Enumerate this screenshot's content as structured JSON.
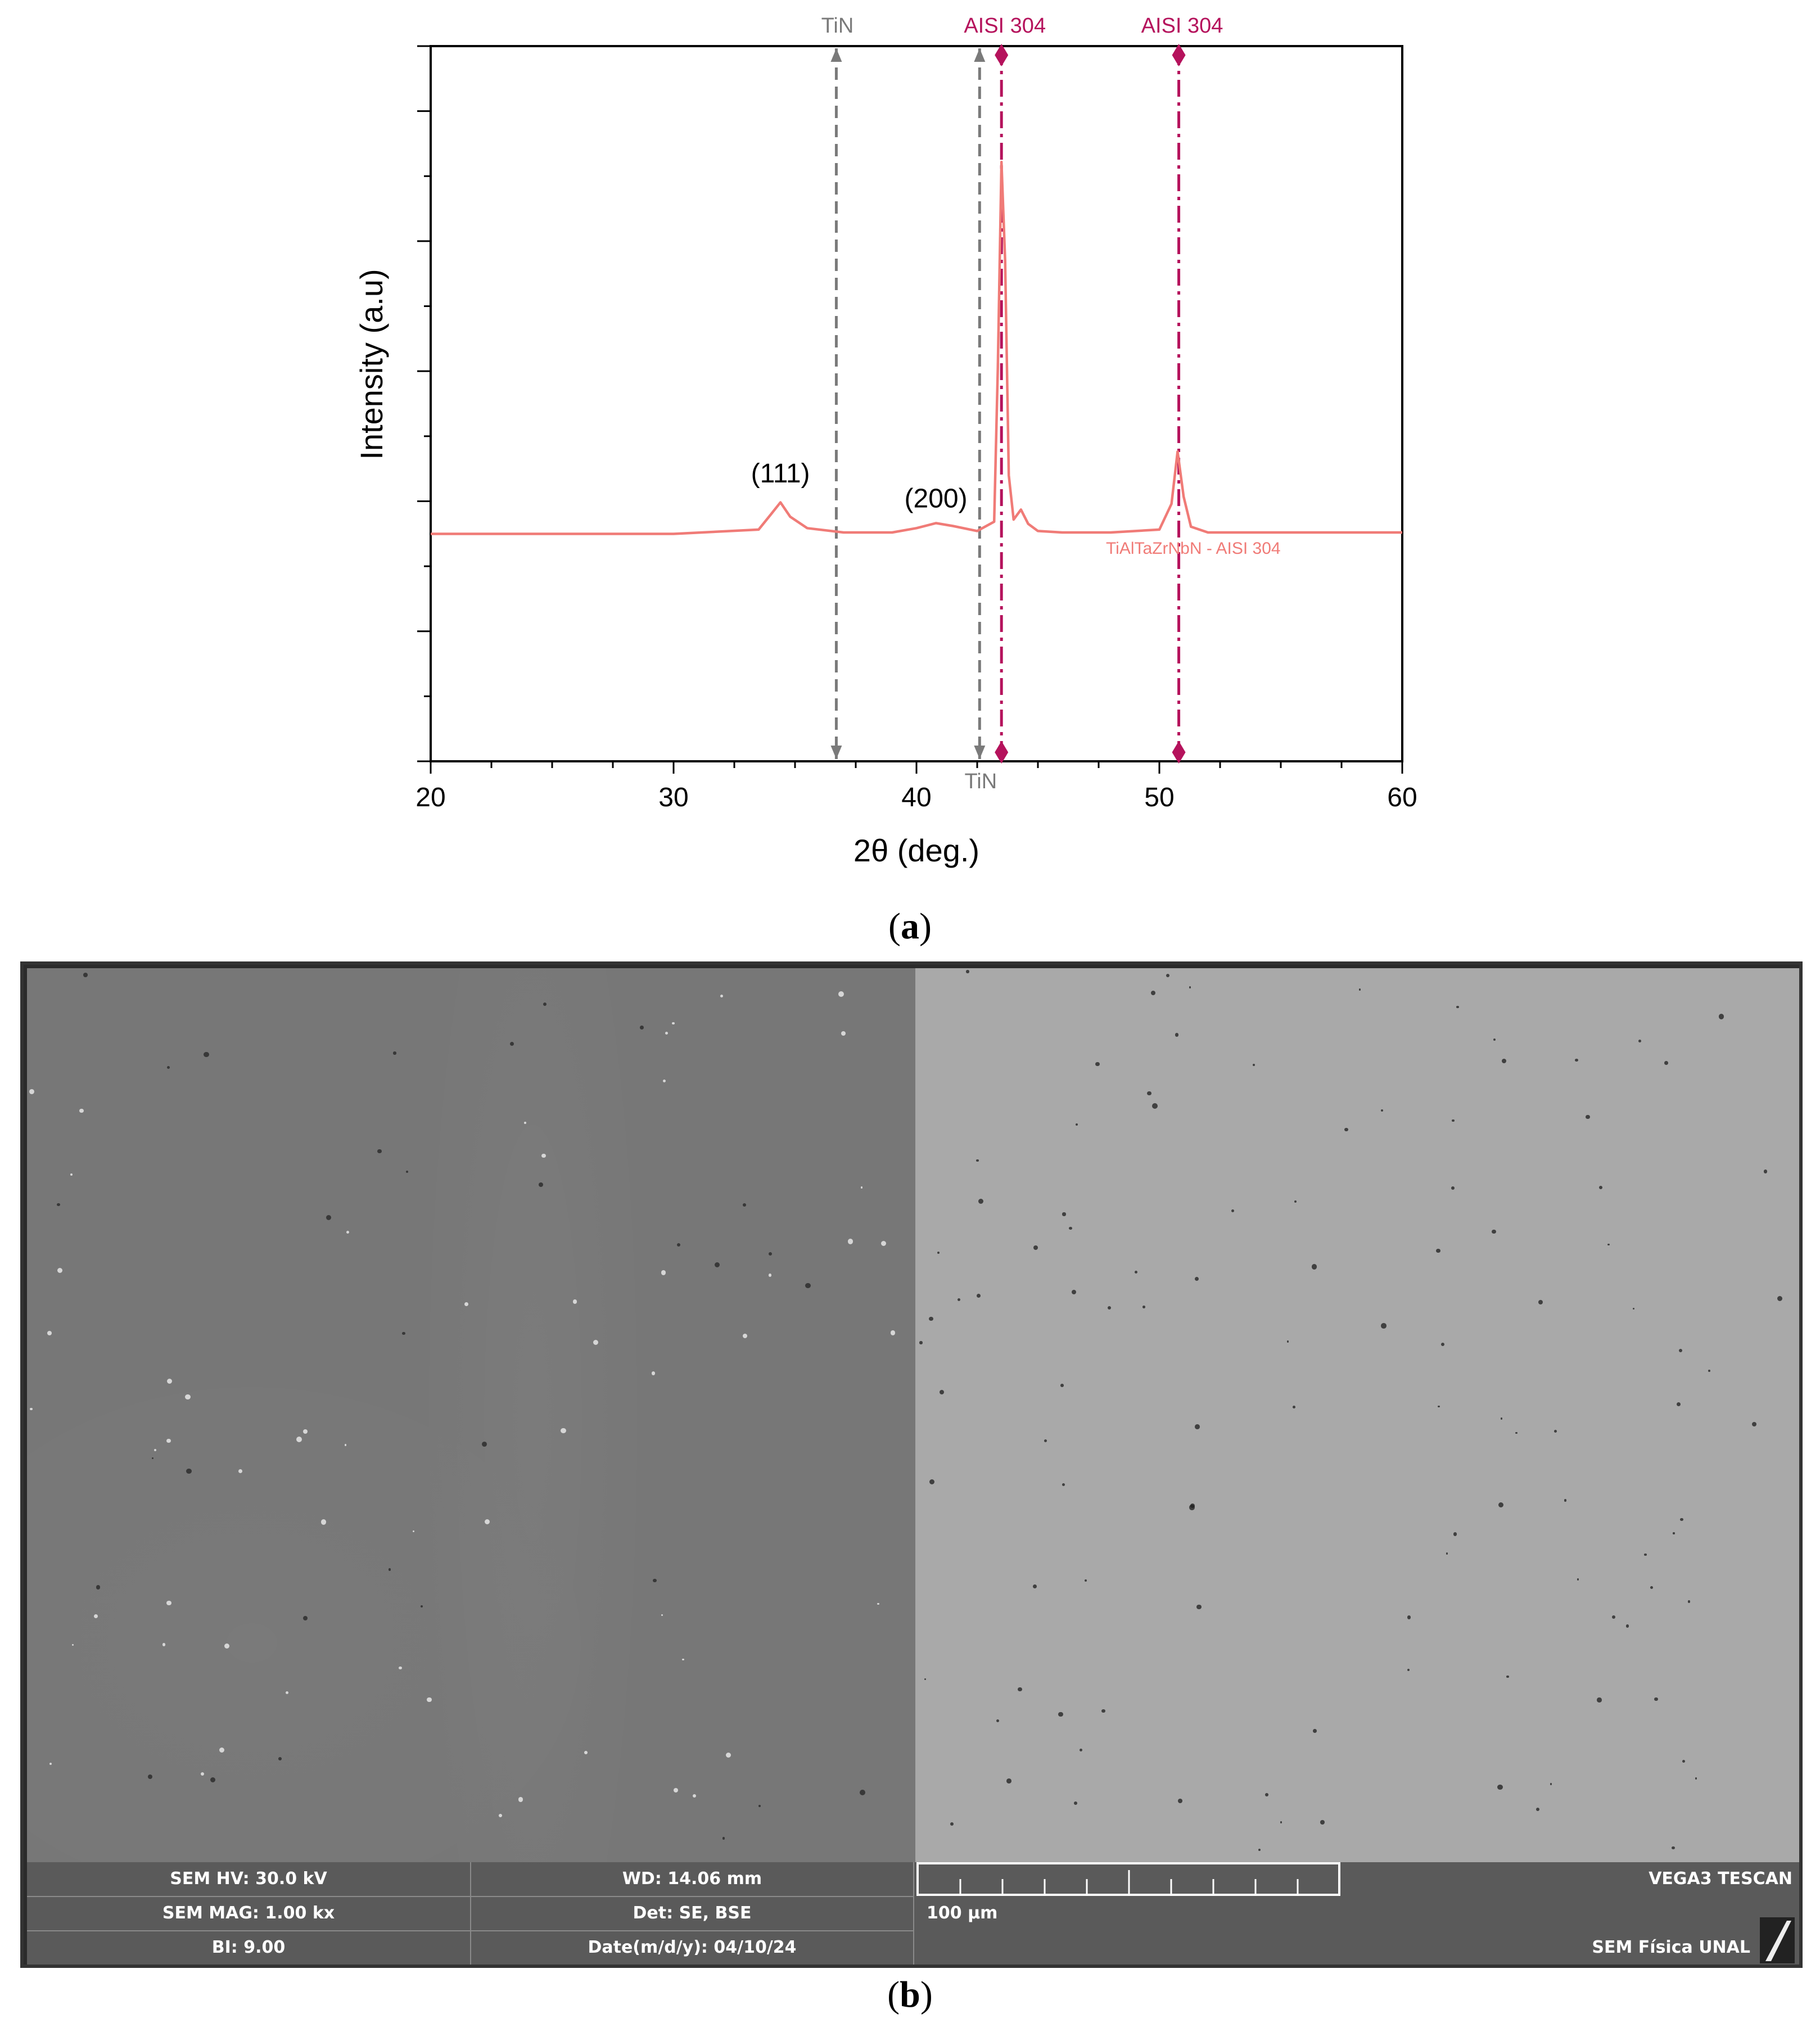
{
  "chart_data": {
    "type": "line",
    "xlabel": "2θ (deg.)",
    "ylabel": "Intensity (a.u)",
    "xlim": [
      20,
      60
    ],
    "ylim": [
      0,
      1
    ],
    "xticks": [
      20,
      30,
      40,
      50,
      60
    ],
    "grid": false,
    "series": [
      {
        "name": "TiAlTaZrNbN - AISI 304",
        "color": "#f07b77",
        "x": [
          20,
          30,
          33.5,
          34.0,
          34.4,
          34.8,
          35.5,
          37,
          39,
          40,
          40.8,
          41.5,
          42.5,
          43.2,
          43.35,
          43.5,
          43.65,
          43.8,
          44.0,
          44.3,
          44.6,
          45.0,
          46,
          48,
          50,
          50.5,
          50.75,
          51.0,
          51.3,
          52,
          55,
          60
        ],
        "values": [
          0.318,
          0.318,
          0.324,
          0.345,
          0.362,
          0.342,
          0.326,
          0.32,
          0.32,
          0.326,
          0.333,
          0.329,
          0.322,
          0.335,
          0.55,
          0.838,
          0.7,
          0.4,
          0.338,
          0.352,
          0.332,
          0.322,
          0.32,
          0.32,
          0.324,
          0.36,
          0.433,
          0.37,
          0.328,
          0.32,
          0.32,
          0.32
        ]
      }
    ],
    "annotations": [
      {
        "text": "(111)",
        "x": 34.4,
        "y": 0.39
      },
      {
        "text": "(200)",
        "x": 40.8,
        "y": 0.355
      }
    ],
    "reference_lines": [
      {
        "label": "TiN",
        "x": 36.7,
        "label_position": "top",
        "style": "dashed",
        "color": "#7a7a7a"
      },
      {
        "label": "TiN",
        "x": 42.6,
        "label_position": "bottom",
        "style": "dashed",
        "color": "#7a7a7a"
      },
      {
        "label": "AISI 304",
        "x": 43.5,
        "label_position": "top",
        "style": "dash-dot",
        "color": "#b5125c"
      },
      {
        "label": "AISI 304",
        "x": 50.8,
        "label_position": "top",
        "style": "dash-dot",
        "color": "#b5125c"
      }
    ],
    "series_label": "TiAlTaZrNbN - AISI 304"
  },
  "captions": {
    "a": "a",
    "b": "b"
  },
  "sem": {
    "hv": "SEM HV: 30.0 kV",
    "wd": "WD: 14.06 mm",
    "mag": "SEM MAG: 1.00 kx",
    "det": "Det: SE, BSE",
    "bi": "BI: 9.00",
    "date": "Date(m/d/y): 04/10/24",
    "scale": "100 µm",
    "brand": "VEGA3 TESCAN",
    "lab": "SEM Física UNAL"
  }
}
